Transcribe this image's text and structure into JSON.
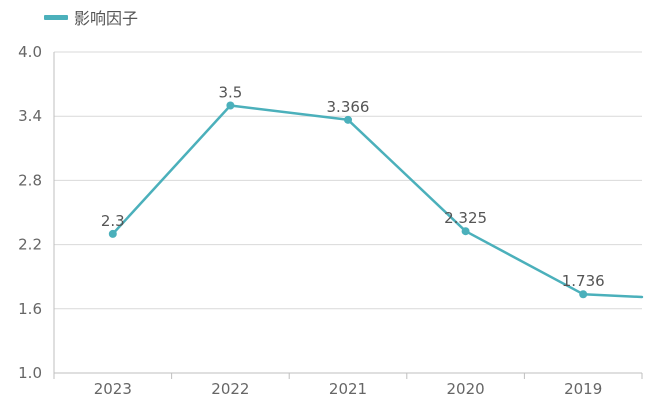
{
  "chart_data": {
    "type": "line",
    "categories": [
      "2023",
      "2022",
      "2021",
      "2020",
      "2019"
    ],
    "series": [
      {
        "name": "影响因子",
        "values": [
          2.3,
          3.5,
          3.366,
          2.325,
          1.736
        ],
        "labels": [
          "2.3",
          "3.5",
          "3.366",
          "2.325",
          "1.736"
        ]
      }
    ],
    "trailing_value": 1.71,
    "yticks": [
      "1.0",
      "1.6",
      "2.2",
      "2.8",
      "3.4",
      "4.0"
    ],
    "ylim": [
      1.0,
      4.0
    ],
    "grid": true,
    "legend": "top-left",
    "color": "#4bb0bb",
    "grid_color": "#d9d9d9",
    "axis_color": "#bfbfbf"
  }
}
